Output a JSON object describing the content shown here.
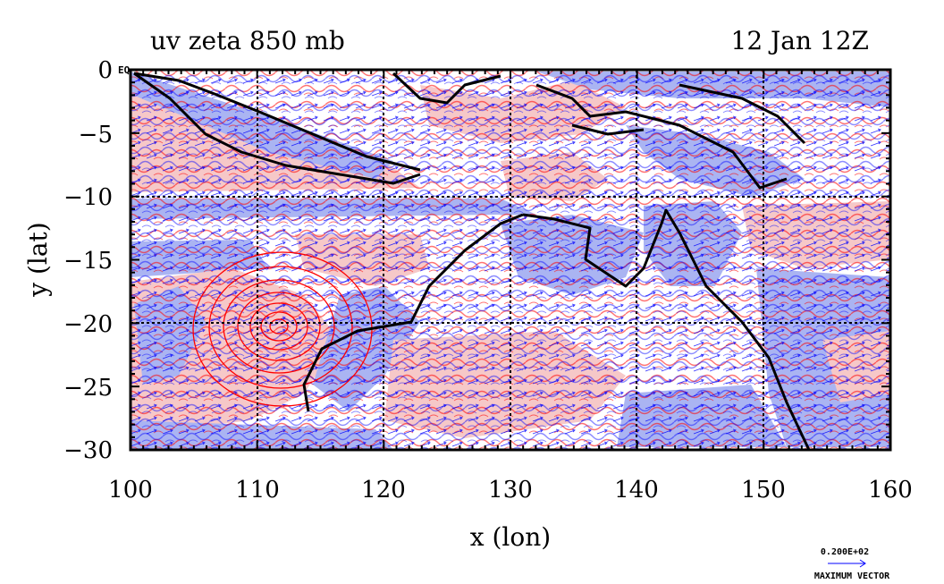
{
  "header": {
    "title_left": "uv zeta 850 mb",
    "title_right": "12 Jan 12Z"
  },
  "axes": {
    "xlabel": "x (lon)",
    "ylabel": "y (lat)",
    "x_ticks": [
      "100",
      "110",
      "120",
      "130",
      "140",
      "150",
      "160"
    ],
    "y_ticks": [
      "0",
      "−5",
      "−10",
      "−15",
      "−20",
      "−25",
      "−30"
    ],
    "eq_label": "EQ",
    "xlim": [
      100,
      160
    ],
    "ylim": [
      -30,
      0
    ]
  },
  "legend": {
    "vector_value": "0.200E+02",
    "vector_label": "MAXIMUM VECTOR"
  },
  "colors": {
    "positive_fill": "#f6c8c8",
    "negative_fill": "#aab4f2",
    "positive_contour": "#ff0000",
    "negative_contour": "#0000ff",
    "coast": "#000000"
  }
}
